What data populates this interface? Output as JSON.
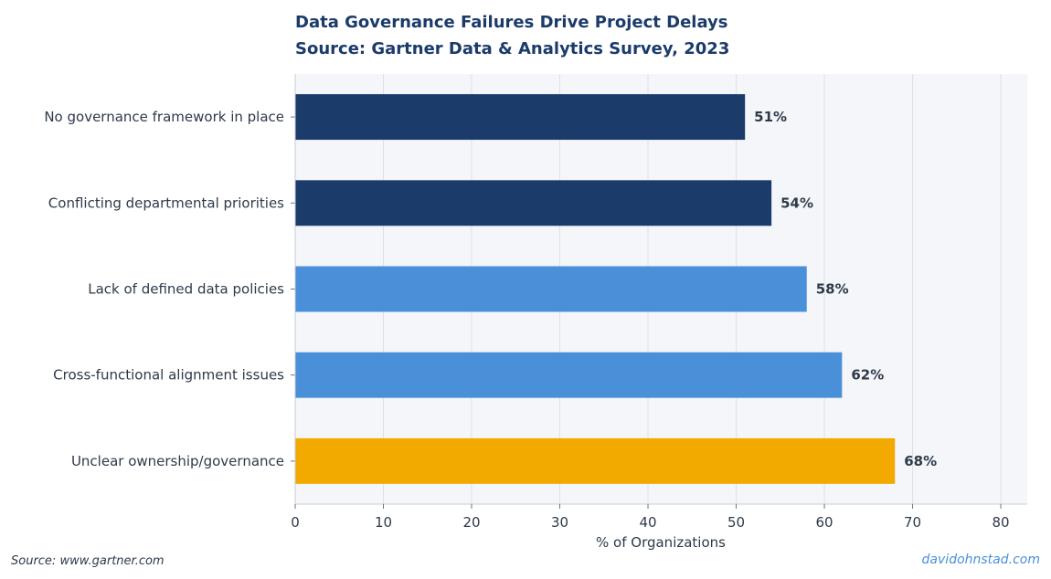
{
  "chart_data": {
    "type": "bar",
    "orientation": "horizontal",
    "title": "Data Governance Failures Drive Project Delays",
    "subtitle": "Source: Gartner Data & Analytics Survey, 2023",
    "xlabel": "% of Organizations",
    "ylabel": "",
    "xlim": [
      0,
      83
    ],
    "xticks": [
      0,
      10,
      20,
      30,
      40,
      50,
      60,
      70,
      80
    ],
    "grid": true,
    "categories": [
      "No governance framework in place",
      "Conflicting departmental priorities",
      "Lack of defined data policies",
      "Cross-functional alignment issues",
      "Unclear ownership/governance"
    ],
    "values": [
      51,
      54,
      58,
      62,
      68
    ],
    "value_labels": [
      "51%",
      "54%",
      "58%",
      "62%",
      "68%"
    ],
    "colors": [
      "#1b3b6b",
      "#1b3b6b",
      "#4a90d9",
      "#4a90d9",
      "#f2a900"
    ],
    "colors_theme": {
      "title": "#1b3b6b",
      "plot_background": "#f4f6f9",
      "text": "#2e3a4a",
      "grid": "#dde1e6"
    }
  },
  "footer": {
    "source": "Source: www.gartner.com",
    "credit": "davidohnstad.com"
  }
}
